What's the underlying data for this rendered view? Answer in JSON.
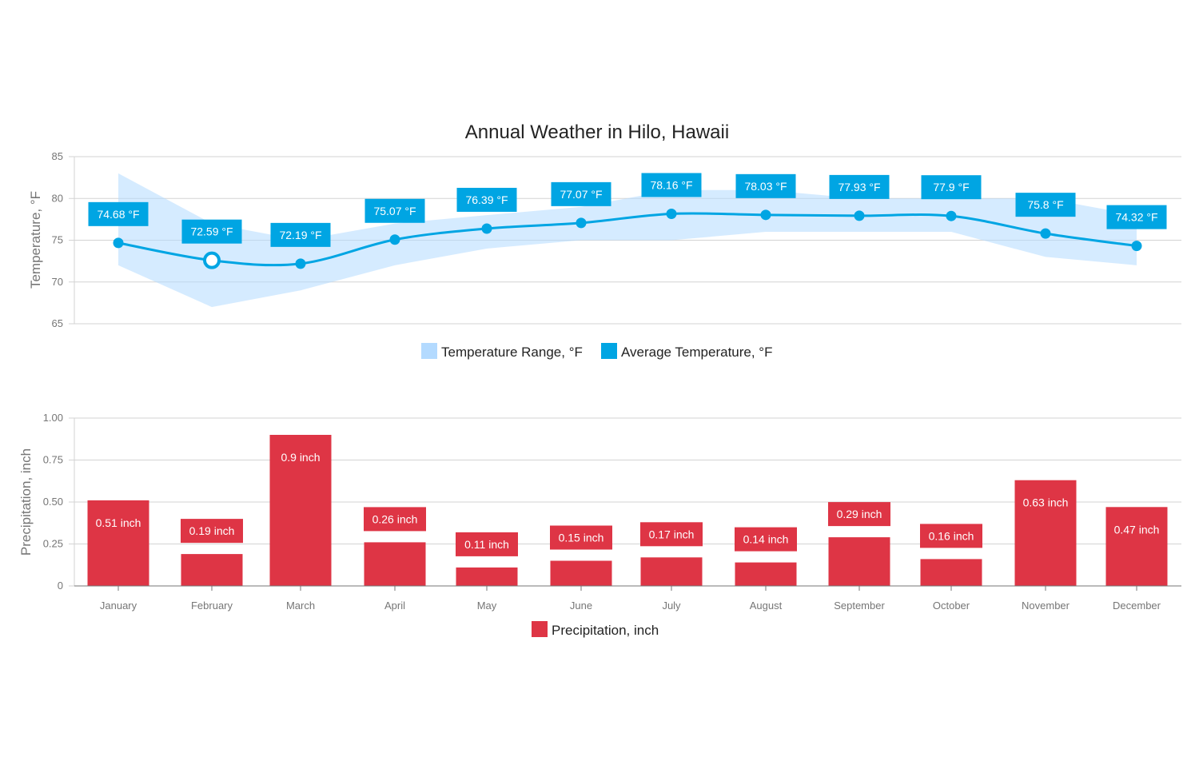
{
  "chart_data": [
    {
      "type": "area",
      "title": "Annual Weather in Hilo, Hawaii",
      "ylabel": "Temperature, °F",
      "ylim": [
        65,
        85
      ],
      "yticks": [
        "85",
        "80",
        "75",
        "70",
        "65"
      ],
      "categories": [
        "January",
        "February",
        "March",
        "April",
        "May",
        "June",
        "July",
        "August",
        "September",
        "October",
        "November",
        "December"
      ],
      "series": [
        {
          "name": "Temperature Range, °F",
          "type": "rangearea",
          "low": [
            72,
            67,
            69,
            72,
            74,
            75,
            75,
            76,
            76,
            76,
            73,
            72
          ],
          "high": [
            83,
            77,
            75,
            77,
            78,
            79,
            81,
            81,
            80,
            80,
            80,
            78
          ],
          "color": "#b3daff"
        },
        {
          "name": "Average Temperature, °F",
          "type": "spline",
          "values": [
            74.68,
            72.59,
            72.19,
            75.07,
            76.39,
            77.07,
            78.16,
            78.03,
            77.93,
            77.9,
            75.8,
            74.32
          ],
          "labels": [
            "74.68 °F",
            "72.59 °F",
            "72.19 °F",
            "75.07 °F",
            "76.39 °F",
            "77.07 °F",
            "78.16 °F",
            "78.03 °F",
            "77.93 °F",
            "77.9 °F",
            "75.8 °F",
            "74.32 °F"
          ],
          "color": "#00a5e3",
          "hovered_point": "February"
        }
      ],
      "legend": "bottom-center",
      "grid": true
    },
    {
      "type": "bar",
      "ylabel": "Precipitation, inch",
      "ylim": [
        0,
        1
      ],
      "yticks": [
        "1.00",
        "0.75",
        "0.50",
        "0.25",
        "0"
      ],
      "categories": [
        "January",
        "February",
        "March",
        "April",
        "May",
        "June",
        "July",
        "August",
        "September",
        "October",
        "November",
        "December"
      ],
      "series": [
        {
          "name": "Precipitation, inch",
          "values": [
            0.51,
            0.19,
            0.9,
            0.26,
            0.11,
            0.15,
            0.17,
            0.14,
            0.29,
            0.16,
            0.63,
            0.47
          ],
          "labels": [
            "0.51 inch",
            "0.19 inch",
            "0.9 inch",
            "0.26 inch",
            "0.11 inch",
            "0.15 inch",
            "0.17 inch",
            "0.14 inch",
            "0.29 inch",
            "0.16 inch",
            "0.63 inch",
            "0.47 inch"
          ],
          "color": "#de3545"
        }
      ],
      "legend": "bottom-center",
      "grid": true
    }
  ]
}
